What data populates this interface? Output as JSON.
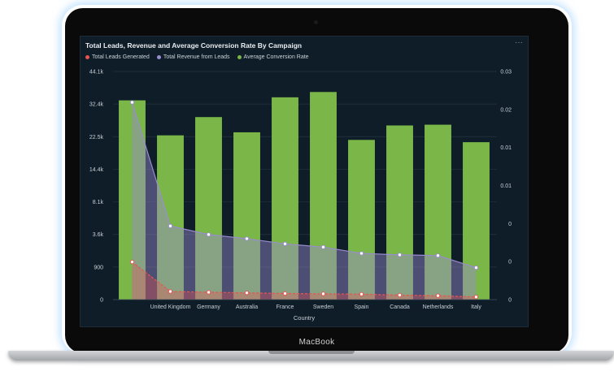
{
  "device": {
    "brand_label": "MacBook"
  },
  "menu": {
    "icon": "more-horizontal-icon",
    "label": "···"
  },
  "colors": {
    "leads": "#e8544f",
    "revenue": "#9a8ccf",
    "conversion": "#7ab648",
    "screen_bg": "#0f1d28",
    "grid": "#233440",
    "axis_text": "#c7cfd6"
  },
  "chart_data": {
    "type": "bar",
    "title": "Total Leads, Revenue and Average Conversion Rate By Campaign",
    "xlabel": "Country",
    "categories": [
      "",
      "United Kingdom",
      "Germany",
      "Australia",
      "France",
      "Sweden",
      "Spain",
      "Canada",
      "Netherlands",
      "Italy"
    ],
    "y_left_ticks": [
      "0",
      "900",
      "3.6k",
      "8.1k",
      "14.4k",
      "22.5k",
      "32.4k",
      "44.1k"
    ],
    "y_right_ticks": [
      "0",
      "0",
      "0",
      "0.01",
      "0.01",
      "0.02",
      "0.03"
    ],
    "y_right_lim": [
      0,
      0.03
    ],
    "grid": true,
    "legend_position": "top-left",
    "series": [
      {
        "name": "Total Leads Generated",
        "kind": "line-area",
        "axis": "left",
        "values": [
          1320,
          225,
          203,
          187,
          170,
          160,
          151,
          124,
          108,
          74
        ]
      },
      {
        "name": "Total Revenue from Leads",
        "kind": "line-area",
        "axis": "left",
        "values": [
          33000,
          4760,
          3590,
          3250,
          2820,
          2550,
          2030,
          1910,
          1850,
          882
        ]
      },
      {
        "name": "Average Conversion Rate",
        "kind": "bar",
        "axis": "right",
        "values": [
          0.0262,
          0.0216,
          0.024,
          0.022,
          0.0266,
          0.0273,
          0.021,
          0.0229,
          0.023,
          0.0207
        ]
      }
    ]
  }
}
